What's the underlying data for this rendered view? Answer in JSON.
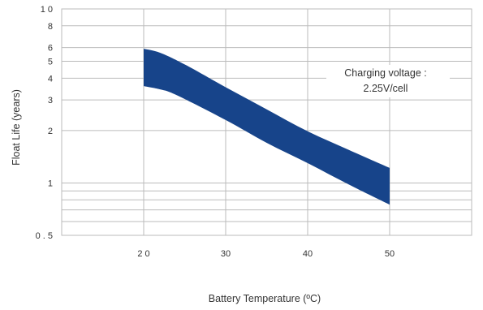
{
  "chart_data": {
    "type": "area",
    "title": "",
    "xlabel": "Battery Temperature (ºC)",
    "ylabel": "Float Life (years)",
    "xlim": [
      10,
      60
    ],
    "ylim": [
      0.5,
      10
    ],
    "y_scale": "log",
    "grid": true,
    "x_ticks": [
      {
        "value": 20,
        "label": "2 0"
      },
      {
        "value": 30,
        "label": "30"
      },
      {
        "value": 40,
        "label": "40"
      },
      {
        "value": 50,
        "label": "50"
      }
    ],
    "y_ticks": [
      {
        "value": 10,
        "label": "1 0"
      },
      {
        "value": 8,
        "label": "8"
      },
      {
        "value": 6,
        "label": "6"
      },
      {
        "value": 5,
        "label": "5"
      },
      {
        "value": 4,
        "label": "4"
      },
      {
        "value": 3,
        "label": "3"
      },
      {
        "value": 2,
        "label": "2"
      },
      {
        "value": 1,
        "label": "1"
      },
      {
        "value": 0.5,
        "label": "0 . 5"
      }
    ],
    "y_minor_lines": [
      0.9,
      0.8,
      0.7,
      0.6
    ],
    "band": {
      "color": "#17448a",
      "upper": [
        [
          20,
          5.9
        ],
        [
          22,
          5.6
        ],
        [
          25,
          4.8
        ],
        [
          30,
          3.55
        ],
        [
          35,
          2.65
        ],
        [
          40,
          1.98
        ],
        [
          45,
          1.55
        ],
        [
          50,
          1.22
        ]
      ],
      "lower": [
        [
          20,
          3.6
        ],
        [
          22,
          3.45
        ],
        [
          24,
          3.2
        ],
        [
          30,
          2.3
        ],
        [
          35,
          1.7
        ],
        [
          40,
          1.3
        ],
        [
          45,
          0.98
        ],
        [
          50,
          0.75
        ]
      ]
    },
    "annotation": {
      "line1": "Charging voltage :",
      "line2": "2.25V/cell",
      "x": 46,
      "y": 4
    }
  }
}
